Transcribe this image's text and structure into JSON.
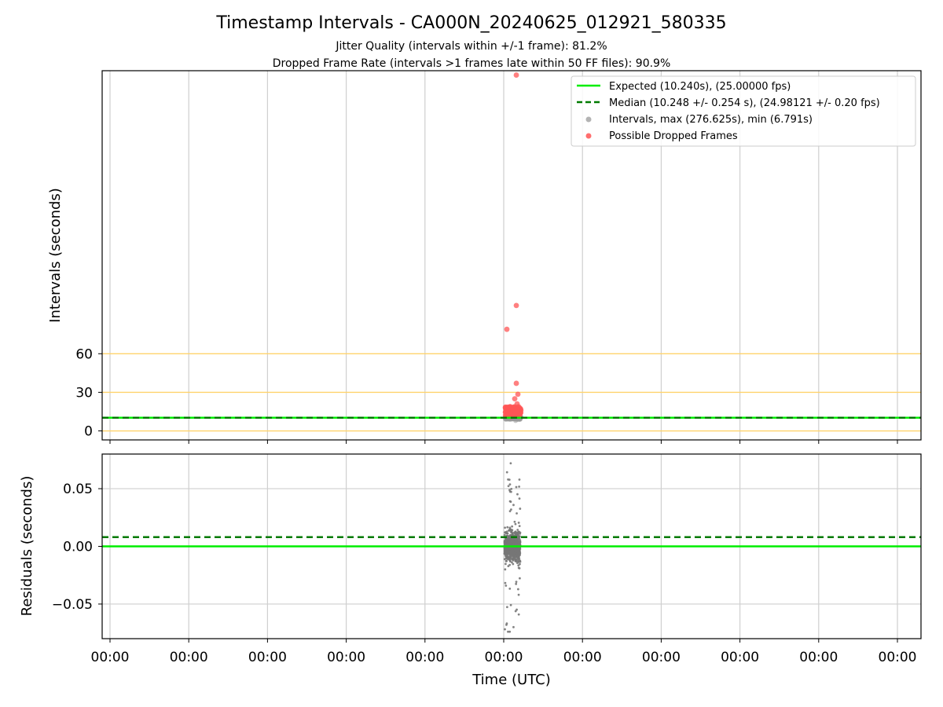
{
  "chart_data": [
    {
      "type": "scatter",
      "title": "Timestamp Intervals - CA000N_20240625_012921_580335",
      "subtitle_lines": [
        "Jitter Quality (intervals within +/-1 frame): 81.2%",
        "Dropped Frame Rate (intervals >1 frames late within 50 FF files): 90.9%"
      ],
      "ylabel": "Intervals (seconds)",
      "ylim": [
        -7,
        280
      ],
      "yticks": [
        0,
        30,
        60
      ],
      "ytick_labels": [
        "0",
        "30",
        "60"
      ],
      "threshold_lines": [
        0,
        30,
        60
      ],
      "threshold_color": "#ffd36b",
      "expected_line": 10.24,
      "median_line": 10.248,
      "expected_color": "#00ee00",
      "median_color": "#007a00",
      "grid": "vertical",
      "legend_position": "top-right",
      "legend": [
        {
          "label": "Expected (10.240s), (25.00000 fps)",
          "marker": "line",
          "color": "#00ee00"
        },
        {
          "label": "Median (10.248 +/- 0.254 s), (24.98121 +/- 0.20 fps)",
          "marker": "dashed-line",
          "color": "#007a00"
        },
        {
          "label": "Intervals, max (276.625s), min (6.791s)",
          "marker": "dot",
          "color": "#999999"
        },
        {
          "label": "Possible Dropped Frames",
          "marker": "dot",
          "color": "#ff5555"
        }
      ],
      "series": [
        {
          "name": "Intervals, max (276.625s), min (6.791s)",
          "color": "#999999",
          "summary": {
            "max": 276.625,
            "min": 6.791,
            "count_approx": 220
          }
        },
        {
          "name": "Possible Dropped Frames",
          "color": "#ff5555",
          "points": [
            {
              "x": 5.16,
              "y": 276.6
            },
            {
              "x": 5.16,
              "y": 97.5
            },
            {
              "x": 5.04,
              "y": 79.0
            },
            {
              "x": 5.16,
              "y": 37.0
            },
            {
              "x": 5.18,
              "y": 28.5
            },
            {
              "x": 5.14,
              "y": 25.0
            },
            {
              "x": 5.05,
              "y": 18.5
            },
            {
              "x": 5.17,
              "y": 21.0
            },
            {
              "x": 5.1,
              "y": 16.0
            },
            {
              "x": 5.13,
              "y": 17.5
            },
            {
              "x": 5.07,
              "y": 14.0
            },
            {
              "x": 5.15,
              "y": 15.0
            }
          ]
        }
      ]
    },
    {
      "type": "scatter",
      "ylabel": "Residuals (seconds)",
      "xlabel": "Time (UTC)",
      "ylim": [
        -0.08,
        0.08
      ],
      "yticks": [
        0.05,
        0.0,
        -0.05
      ],
      "ytick_labels": [
        "0.05",
        "0.00",
        "−0.05"
      ],
      "expected_line": 0.0,
      "median_line": 0.008,
      "x_tick_labels": [
        "00:00",
        "00:00",
        "00:00",
        "00:00",
        "00:00",
        "00:00",
        "00:00",
        "00:00",
        "00:00",
        "00:00",
        "00:00"
      ],
      "grid": "both",
      "series": [
        {
          "name": "Residuals",
          "color": "#777777",
          "summary": {
            "center": 0.0,
            "spread": 0.075,
            "count_approx": 800
          }
        }
      ]
    }
  ]
}
